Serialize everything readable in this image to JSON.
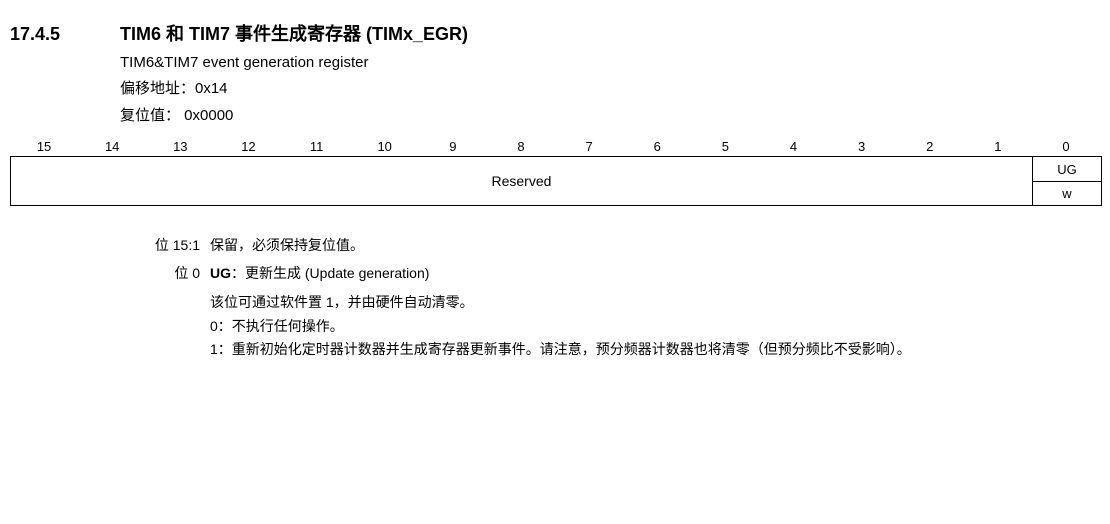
{
  "header": {
    "section_number": "17.4.5",
    "title_cn": "TIM6 和 TIM7 事件生成寄存器 (TIMx_EGR)",
    "title_en": "TIM6&TIM7 event generation register",
    "offset_label": "偏移地址：0x14",
    "reset_label": "复位值： 0x0000"
  },
  "bit_header": {
    "bits": [
      "15",
      "14",
      "13",
      "12",
      "11",
      "10",
      "9",
      "8",
      "7",
      "6",
      "5",
      "4",
      "3",
      "2",
      "1",
      "0"
    ]
  },
  "register": {
    "reserved_label": "Reserved",
    "bit0_name": "UG",
    "bit0_access": "w"
  },
  "descriptions": {
    "row1_label": "位 15:1",
    "row1_text": "保留，必须保持复位值。",
    "row2_label": "位 0",
    "row2_bold": "UG",
    "row2_sep": "：",
    "row2_text": "更新生成 (Update generation)",
    "line3": "该位可通过软件置 1，并由硬件自动清零。",
    "line4": "0：不执行任何操作。",
    "line5": "1：重新初始化定时器计数器并生成寄存器更新事件。请注意，预分频器计数器也将清零（但预分频比不受影响）。"
  }
}
